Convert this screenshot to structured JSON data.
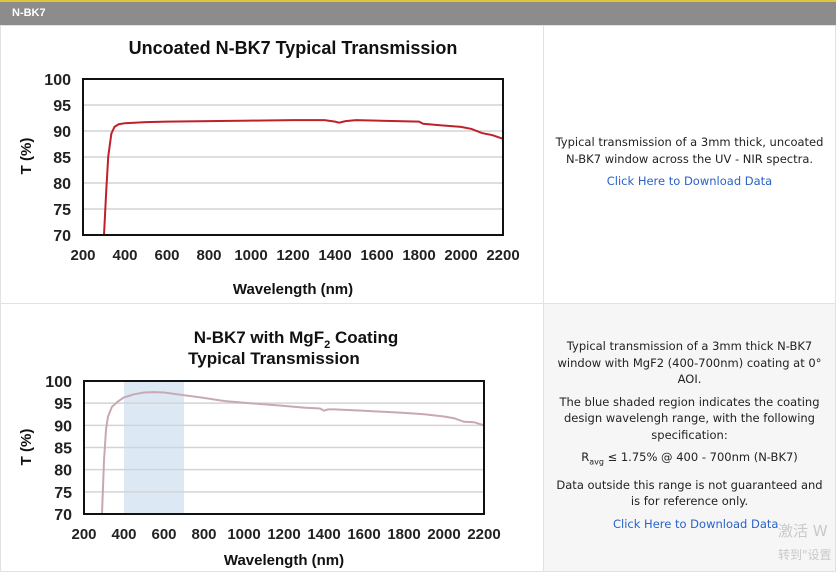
{
  "header": {
    "title": "N-BK7"
  },
  "row1": {
    "desc": "Typical transmission of a 3mm thick, uncoated N-BK7 window across the UV - NIR spectra.",
    "link": "Click Here to Download Data"
  },
  "row2": {
    "desc1": "Typical transmission of a 3mm thick N-BK7 window with MgF2 (400-700nm) coating at 0° AOI.",
    "desc2": "The blue shaded region indicates the coating design wavelengh range, with the following specification:",
    "spec_r": "R",
    "spec_sub": "avg",
    "spec_rest": " ≤ 1.75% @ 400 - 700nm (N-BK7)",
    "desc3": "Data outside this range is not guaranteed and is for reference only.",
    "link": "Click Here to Download Data"
  },
  "watermark": {
    "line1": "激活 W",
    "line2": "转到\"设置"
  },
  "chart_data": [
    {
      "type": "line",
      "title": "Uncoated N-BK7 Typical Transmission",
      "xlabel": "Wavelength (nm)",
      "ylabel": "T (%)",
      "xlim": [
        200,
        2200
      ],
      "ylim": [
        70,
        100
      ],
      "grid": true,
      "xticks": [
        "200",
        "400",
        "600",
        "800",
        "1000",
        "1200",
        "1400",
        "1600",
        "1800",
        "2000",
        "2200"
      ],
      "yticks": [
        "70",
        "75",
        "80",
        "85",
        "90",
        "95",
        "100"
      ],
      "color": "#c0202a",
      "x": [
        300,
        310,
        320,
        335,
        350,
        370,
        400,
        500,
        600,
        800,
        1000,
        1200,
        1350,
        1400,
        1420,
        1450,
        1500,
        1600,
        1800,
        1820,
        1900,
        2000,
        2050,
        2100,
        2150,
        2200
      ],
      "y": [
        70,
        78,
        85,
        89.5,
        90.8,
        91.3,
        91.5,
        91.7,
        91.8,
        91.9,
        92,
        92.1,
        92.1,
        91.8,
        91.6,
        91.9,
        92.1,
        92,
        91.8,
        91.4,
        91.1,
        90.8,
        90.4,
        89.6,
        89.2,
        88.5
      ]
    },
    {
      "type": "line",
      "title": "N-BK7 with MgF2 Coating Typical Transmission",
      "title_line1": "N-BK7 with MgF",
      "title_sub": "2",
      "title_line1b": " Coating",
      "title_line2": "Typical Transmission",
      "xlabel": "Wavelength (nm)",
      "ylabel": "T (%)",
      "xlim": [
        200,
        2200
      ],
      "ylim": [
        70,
        100
      ],
      "grid": true,
      "xticks": [
        "200",
        "400",
        "600",
        "800",
        "1000",
        "1200",
        "1400",
        "1600",
        "1800",
        "2000",
        "2200"
      ],
      "yticks": [
        "70",
        "75",
        "80",
        "85",
        "90",
        "95",
        "100"
      ],
      "color": "#c9a9b0",
      "shaded_range": [
        400,
        700
      ],
      "shade_color": "#dce9f5",
      "x": [
        290,
        300,
        310,
        320,
        340,
        370,
        400,
        450,
        500,
        550,
        600,
        700,
        800,
        900,
        1000,
        1200,
        1300,
        1380,
        1400,
        1420,
        1450,
        1600,
        1800,
        1900,
        2000,
        2050,
        2100,
        2150,
        2200
      ],
      "y": [
        70,
        82,
        89,
        92,
        94.2,
        95.4,
        96.3,
        97,
        97.4,
        97.5,
        97.4,
        96.8,
        96.2,
        95.5,
        95.1,
        94.4,
        94,
        93.8,
        93.3,
        93.6,
        93.6,
        93.3,
        92.8,
        92.5,
        92,
        91.6,
        90.8,
        90.7,
        90
      ]
    }
  ]
}
